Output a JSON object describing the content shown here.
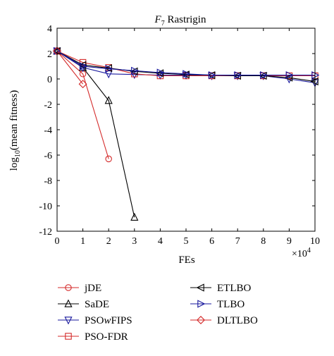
{
  "chart_data": {
    "type": "line",
    "title": {
      "italic": "F",
      "sub": "7",
      "rest": " Rastrigin"
    },
    "xlabel": "FEs",
    "ylabel": {
      "pre": "log",
      "sub": "10",
      "post": "(mean fitness)"
    },
    "x_multiplier": {
      "base": "×10",
      "exp": "4"
    },
    "xlim": [
      0,
      10
    ],
    "ylim": [
      -12,
      4
    ],
    "xticks": [
      0,
      1,
      2,
      3,
      4,
      5,
      6,
      7,
      8,
      9,
      10
    ],
    "yticks": [
      4,
      2,
      0,
      -2,
      -4,
      -6,
      -8,
      -10,
      -12
    ],
    "grid": false,
    "legend_position": "below",
    "series": [
      {
        "name": "jDE",
        "color": "#d42a2a",
        "marker": "circle",
        "x": [
          0,
          1,
          2
        ],
        "y": [
          2.2,
          0.4,
          -6.3
        ]
      },
      {
        "name": "SaDE",
        "color": "#000000",
        "marker": "triangle-up",
        "x": [
          0,
          1,
          2,
          3
        ],
        "y": [
          2.2,
          0.9,
          -1.7,
          -10.9
        ]
      },
      {
        "name": "PSOwFIPS",
        "name_parts": {
          "pre": "PSO",
          "it": "w",
          "post": "FIPS"
        },
        "color": "#1a1a9e",
        "marker": "triangle-down",
        "x": [
          0,
          1,
          2,
          3,
          4,
          5,
          6,
          7,
          8,
          9,
          10
        ],
        "y": [
          2.2,
          0.9,
          0.4,
          0.35,
          0.3,
          0.3,
          0.25,
          0.25,
          0.25,
          0.0,
          -0.3
        ]
      },
      {
        "name": "PSO-FDR",
        "color": "#d42a2a",
        "marker": "square",
        "x": [
          0,
          1,
          2,
          3,
          4,
          5,
          6,
          7,
          8,
          9,
          10
        ],
        "y": [
          2.2,
          1.3,
          0.9,
          0.4,
          0.25,
          0.25,
          0.25,
          0.25,
          0.25,
          0.25,
          0.25
        ]
      },
      {
        "name": "ETLBO",
        "color": "#000000",
        "marker": "triangle-left",
        "x": [
          0,
          1,
          2,
          3,
          4,
          5,
          6,
          7,
          8,
          9,
          10
        ],
        "y": [
          2.2,
          1.1,
          0.85,
          0.6,
          0.45,
          0.35,
          0.3,
          0.25,
          0.25,
          0.1,
          -0.2
        ]
      },
      {
        "name": "TLBO",
        "color": "#1a1a9e",
        "marker": "triangle-right",
        "x": [
          0,
          1,
          2,
          3,
          4,
          5,
          6,
          7,
          8,
          9,
          10
        ],
        "y": [
          2.2,
          1.0,
          0.8,
          0.65,
          0.5,
          0.4,
          0.3,
          0.3,
          0.3,
          0.3,
          0.3
        ]
      },
      {
        "name": "DLTLBO",
        "color": "#d42a2a",
        "marker": "diamond",
        "x": [
          0,
          1
        ],
        "y": [
          2.2,
          -0.4
        ]
      }
    ]
  }
}
